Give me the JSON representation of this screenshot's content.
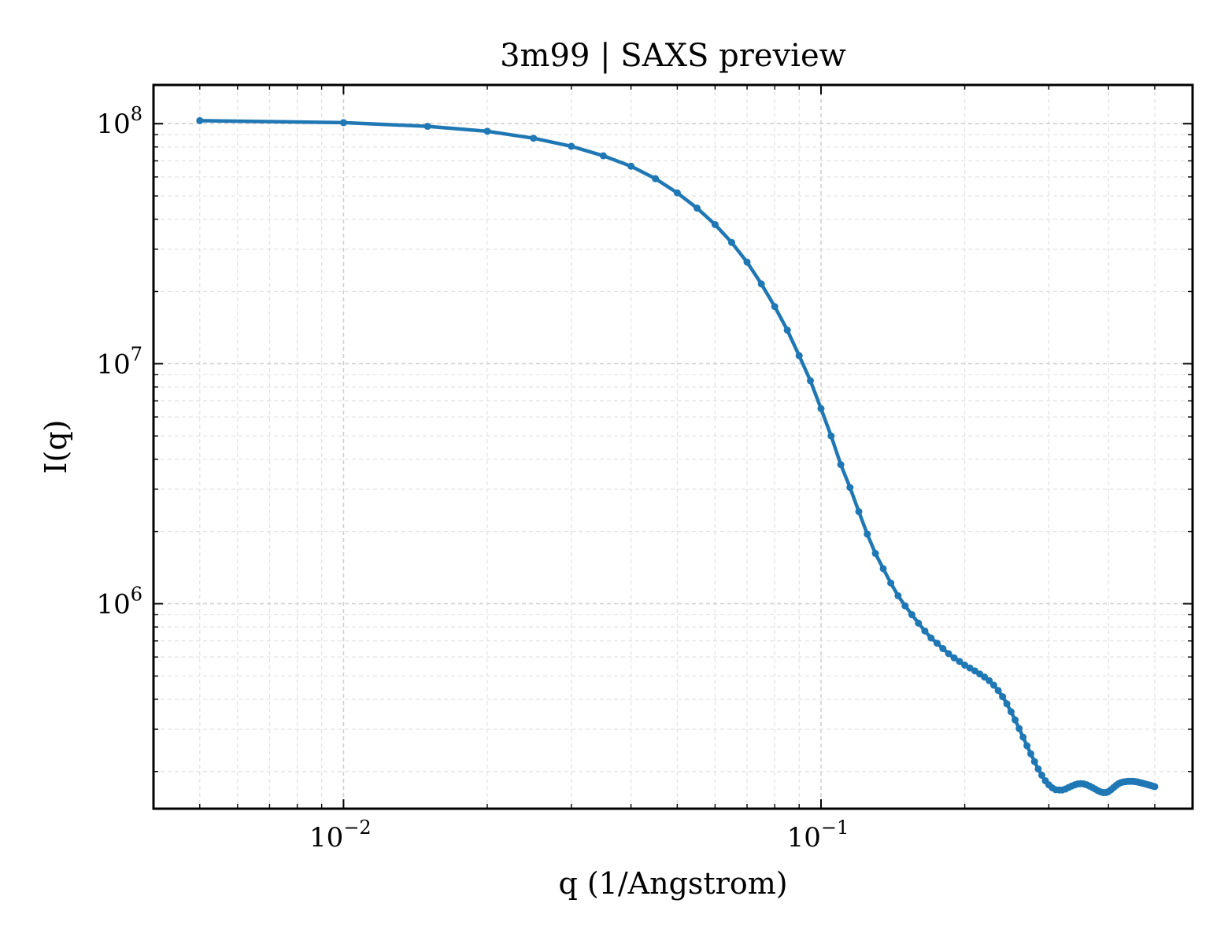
{
  "chart_data": {
    "type": "line",
    "title": "3m99 | SAXS preview",
    "xlabel": "q (1/Angstrom)",
    "ylabel": "I(q)",
    "xscale": "log",
    "yscale": "log",
    "xlim": [
      0.004,
      0.6
    ],
    "ylim": [
      140000,
      145000000
    ],
    "grid": true,
    "line_color": "#1f77b4",
    "x_ticks": [
      {
        "base": "10",
        "exp": "−2",
        "value": 0.01
      },
      {
        "base": "10",
        "exp": "−1",
        "value": 0.1
      }
    ],
    "y_ticks": [
      {
        "base": "10",
        "exp": "6",
        "value": 1000000
      },
      {
        "base": "10",
        "exp": "7",
        "value": 10000000
      },
      {
        "base": "10",
        "exp": "8",
        "value": 100000000
      }
    ],
    "series": [
      {
        "x": [
          0.005,
          0.01,
          0.015,
          0.02,
          0.025,
          0.03,
          0.035,
          0.04,
          0.045,
          0.05,
          0.055,
          0.06,
          0.065,
          0.07,
          0.075,
          0.08,
          0.085,
          0.09,
          0.095,
          0.1,
          0.105,
          0.11,
          0.115,
          0.12,
          0.125,
          0.13,
          0.135,
          0.14,
          0.145,
          0.15,
          0.155,
          0.16,
          0.165,
          0.17,
          0.175,
          0.18,
          0.185,
          0.19,
          0.195,
          0.2,
          0.205,
          0.21,
          0.215,
          0.22,
          0.225,
          0.23,
          0.235,
          0.24,
          0.245,
          0.25,
          0.255,
          0.26,
          0.265,
          0.27,
          0.275,
          0.28,
          0.285,
          0.29,
          0.295,
          0.3,
          0.305,
          0.31,
          0.315,
          0.32,
          0.325,
          0.33,
          0.335,
          0.34,
          0.345,
          0.35,
          0.355,
          0.36,
          0.365,
          0.37,
          0.375,
          0.38,
          0.385,
          0.39,
          0.395,
          0.4,
          0.405,
          0.41,
          0.415,
          0.42,
          0.425,
          0.43,
          0.435,
          0.44,
          0.445,
          0.45,
          0.455,
          0.46,
          0.465,
          0.47,
          0.475,
          0.48,
          0.485,
          0.49,
          0.495,
          0.5
        ],
        "y": [
          103000000,
          101000000,
          97500000,
          93000000,
          87000000,
          80500000,
          73500000,
          66500000,
          59000000,
          51500000,
          44500000,
          38000000,
          32000000,
          26500000,
          21500000,
          17300000,
          13800000,
          10800000,
          8500000,
          6500000,
          5000000,
          3800000,
          3050000,
          2420000,
          1950000,
          1620000,
          1400000,
          1220000,
          1080000,
          980000,
          900000,
          830000,
          770000,
          720000,
          685000,
          650000,
          620000,
          595000,
          575000,
          555000,
          540000,
          525000,
          510000,
          495000,
          478000,
          458000,
          435000,
          410000,
          383000,
          355000,
          328000,
          302000,
          278000,
          256000,
          237000,
          220000,
          205000,
          193000,
          183000,
          176000,
          171000,
          168000,
          167500,
          167500,
          169000,
          171500,
          174000,
          176000,
          177500,
          178000,
          177500,
          176000,
          174000,
          171500,
          169000,
          166500,
          164500,
          163500,
          163500,
          165000,
          168000,
          171500,
          175000,
          178000,
          180000,
          181000,
          181500,
          182000,
          182000,
          182000,
          181500,
          181000,
          180000,
          179000,
          178000,
          177000,
          176000,
          175000,
          174000,
          173000
        ]
      }
    ]
  }
}
